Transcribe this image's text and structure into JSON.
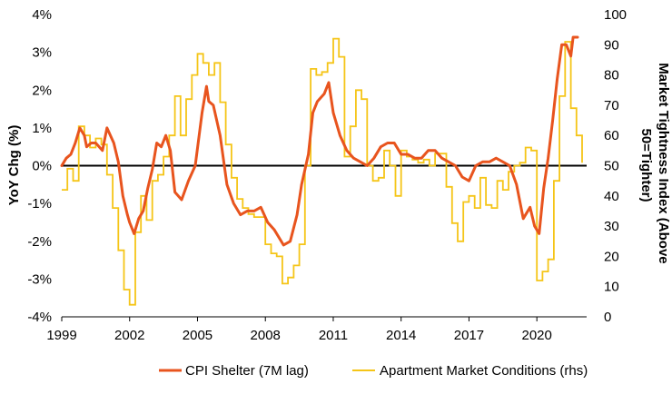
{
  "chart_data": {
    "type": "line",
    "title": "",
    "xlabel": "",
    "ylabel": "YoY Chg (%)",
    "ylabel_right": "Market Tightness Index (Above 50=Tighter)",
    "xlim": [
      1999,
      2022.2
    ],
    "ylim": [
      -4,
      4
    ],
    "ylim_right": [
      0,
      100
    ],
    "x_ticks": [
      1999,
      2002,
      2005,
      2008,
      2011,
      2014,
      2017,
      2020
    ],
    "x_tick_labels": [
      "1999",
      "2002",
      "2005",
      "2008",
      "2011",
      "2014",
      "2017",
      "2020"
    ],
    "y_ticks": [
      -4,
      -3,
      -2,
      -1,
      0,
      1,
      2,
      3,
      4
    ],
    "y_tick_labels": [
      "-4%",
      "-3%",
      "-2%",
      "-1%",
      "0%",
      "1%",
      "2%",
      "3%",
      "4%"
    ],
    "y_ticks_right": [
      0,
      10,
      20,
      30,
      40,
      50,
      60,
      70,
      80,
      90,
      100
    ],
    "y_tick_labels_right": [
      "0",
      "10",
      "20",
      "30",
      "40",
      "50",
      "60",
      "70",
      "80",
      "90",
      "100"
    ],
    "zero_line": true,
    "grid": false,
    "legend_position": "bottom",
    "series": [
      {
        "name": "CPI Shelter (7M lag)",
        "axis": "left",
        "color": "#e8541e",
        "x": [
          1999.0,
          1999.2,
          1999.4,
          1999.6,
          1999.8,
          2000.0,
          2000.1,
          2000.3,
          2000.5,
          2000.8,
          2001.0,
          2001.3,
          2001.5,
          2001.7,
          2001.9,
          2002.0,
          2002.2,
          2002.4,
          2002.6,
          2002.8,
          2003.0,
          2003.2,
          2003.4,
          2003.6,
          2003.8,
          2004.0,
          2004.3,
          2004.6,
          2004.9,
          2005.2,
          2005.4,
          2005.5,
          2005.7,
          2006.0,
          2006.3,
          2006.6,
          2006.9,
          2007.2,
          2007.5,
          2007.8,
          2008.1,
          2008.4,
          2008.8,
          2009.1,
          2009.4,
          2009.6,
          2009.9,
          2010.1,
          2010.3,
          2010.6,
          2010.8,
          2011.0,
          2011.3,
          2011.6,
          2011.9,
          2012.2,
          2012.5,
          2012.8,
          2013.1,
          2013.4,
          2013.7,
          2014.0,
          2014.3,
          2014.6,
          2014.9,
          2015.2,
          2015.5,
          2015.8,
          2016.1,
          2016.4,
          2016.7,
          2017.0,
          2017.3,
          2017.6,
          2017.9,
          2018.2,
          2018.5,
          2018.8,
          2019.1,
          2019.4,
          2019.7,
          2019.9,
          2020.1,
          2020.3,
          2020.5,
          2020.7,
          2020.9,
          2021.1,
          2021.3,
          2021.5,
          2021.6,
          2021.8
        ],
        "values": [
          0.0,
          0.2,
          0.3,
          0.6,
          1.0,
          0.8,
          0.5,
          0.6,
          0.6,
          0.4,
          1.0,
          0.6,
          0.1,
          -0.8,
          -1.3,
          -1.5,
          -1.8,
          -1.4,
          -1.2,
          -0.6,
          -0.1,
          0.6,
          0.5,
          0.8,
          0.4,
          -0.7,
          -0.9,
          -0.4,
          0.0,
          1.4,
          2.1,
          1.7,
          1.6,
          0.8,
          -0.5,
          -1.0,
          -1.3,
          -1.2,
          -1.2,
          -1.1,
          -1.5,
          -1.7,
          -2.1,
          -2.0,
          -1.3,
          -0.5,
          0.3,
          1.4,
          1.7,
          1.9,
          2.2,
          1.4,
          0.8,
          0.4,
          0.2,
          0.1,
          0.0,
          0.2,
          0.5,
          0.6,
          0.6,
          0.3,
          0.3,
          0.2,
          0.2,
          0.4,
          0.4,
          0.2,
          0.1,
          0.0,
          -0.3,
          -0.4,
          0.0,
          0.1,
          0.1,
          0.2,
          0.1,
          0.0,
          -0.5,
          -1.4,
          -1.1,
          -1.6,
          -1.8,
          -0.6,
          0.2,
          1.2,
          2.3,
          3.2,
          3.2,
          2.9,
          3.4,
          3.4
        ]
      },
      {
        "name": "Apartment Market Conditions (rhs)",
        "axis": "right",
        "color": "#f5c518",
        "x": [
          1999.0,
          1999.25,
          1999.5,
          1999.75,
          2000.0,
          2000.25,
          2000.5,
          2000.75,
          2001.0,
          2001.25,
          2001.5,
          2001.75,
          2002.0,
          2002.25,
          2002.5,
          2002.75,
          2003.0,
          2003.25,
          2003.5,
          2003.75,
          2004.0,
          2004.25,
          2004.5,
          2004.75,
          2005.0,
          2005.25,
          2005.5,
          2005.75,
          2006.0,
          2006.25,
          2006.5,
          2006.75,
          2007.0,
          2007.25,
          2007.5,
          2007.75,
          2008.0,
          2008.25,
          2008.5,
          2008.75,
          2009.0,
          2009.25,
          2009.5,
          2009.75,
          2010.0,
          2010.25,
          2010.5,
          2010.75,
          2011.0,
          2011.25,
          2011.5,
          2011.75,
          2012.0,
          2012.25,
          2012.5,
          2012.75,
          2013.0,
          2013.25,
          2013.5,
          2013.75,
          2014.0,
          2014.25,
          2014.5,
          2014.75,
          2015.0,
          2015.25,
          2015.5,
          2015.75,
          2016.0,
          2016.25,
          2016.5,
          2016.75,
          2017.0,
          2017.25,
          2017.5,
          2017.75,
          2018.0,
          2018.25,
          2018.5,
          2018.75,
          2019.0,
          2019.25,
          2019.5,
          2019.75,
          2020.0,
          2020.25,
          2020.5,
          2020.75,
          2021.0,
          2021.25,
          2021.5,
          2021.75,
          2022.0
        ],
        "values": [
          42,
          49,
          45,
          63,
          60,
          56,
          59,
          57,
          47,
          36,
          22,
          9,
          4,
          28,
          40,
          32,
          45,
          47,
          53,
          60,
          73,
          60,
          72,
          80,
          87,
          84,
          80,
          84,
          71,
          57,
          46,
          39,
          36,
          34,
          33,
          33,
          24,
          21,
          20,
          11,
          13,
          17,
          24,
          50,
          82,
          80,
          81,
          84,
          92,
          86,
          53,
          63,
          75,
          72,
          50,
          45,
          46,
          55,
          50,
          40,
          55,
          53,
          52,
          51,
          52,
          50,
          54,
          54,
          43,
          31,
          25,
          38,
          40,
          36,
          46,
          37,
          36,
          45,
          42,
          48,
          50,
          51,
          56,
          55,
          12,
          15,
          19,
          45,
          73,
          91,
          69,
          60,
          51
        ]
      }
    ]
  }
}
